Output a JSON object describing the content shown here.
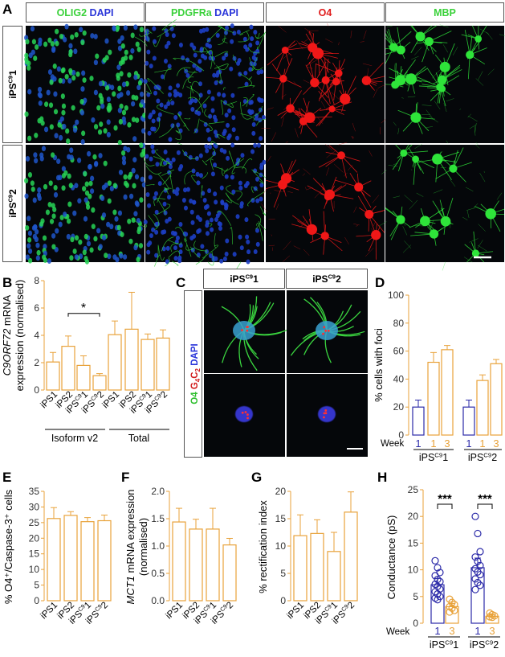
{
  "colors": {
    "bar": "#e8a23a",
    "bar_blue": "#2b2aa8",
    "micrograph_bg": "#05070a",
    "green": "#2ee03a",
    "red": "#e01515",
    "blue": "#2a47e0"
  },
  "panel_A": {
    "letter": "A",
    "columns": [
      {
        "parts": [
          [
            "OLIG2",
            "#3ad13a"
          ],
          [
            " DAPI",
            "#2a35d9"
          ]
        ]
      },
      {
        "parts": [
          [
            "PDGFRa",
            "#3ad13a"
          ],
          [
            " DAPI",
            "#2a35d9"
          ]
        ]
      },
      {
        "parts": [
          [
            "O4",
            "#e01b1b"
          ]
        ]
      },
      {
        "parts": [
          [
            "MBP",
            "#3ad13a"
          ]
        ]
      }
    ],
    "rows": [
      {
        "base": "iPS",
        "sup": "C9",
        "tail": "1"
      },
      {
        "base": "iPS",
        "sup": "C9",
        "tail": "2"
      }
    ]
  },
  "panel_B": {
    "letter": "B",
    "ylabel_italic": "C9ORF72",
    "ylabel_rest": " mRNA",
    "ylabel_line2": "expression (normalised)",
    "significance": "*",
    "groups": [
      "Isoform v2",
      "Total"
    ]
  },
  "panel_C": {
    "letter": "C",
    "columns": [
      {
        "base": "iPS",
        "sup": "C9",
        "tail": "1"
      },
      {
        "base": "iPS",
        "sup": "C9",
        "tail": "2"
      }
    ],
    "side_label": [
      [
        "O4 ",
        "#2fbf2f"
      ],
      [
        "G",
        "#d11b1b"
      ],
      [
        "4",
        "#d11b1b",
        "sub"
      ],
      [
        "C",
        "#d11b1b"
      ],
      [
        "2",
        "#d11b1b",
        "sub"
      ],
      [
        " DAPI",
        "#2a35d9"
      ]
    ]
  },
  "panel_D": {
    "letter": "D",
    "ylabel": "% cells with foci",
    "week_label": "Week",
    "week_numbers": [
      "1",
      "1",
      "3",
      "1",
      "1",
      "3"
    ],
    "lines": [
      {
        "base": "iPS",
        "sup": "C9",
        "tail": "1"
      },
      {
        "base": "iPS",
        "sup": "C9",
        "tail": "2"
      }
    ]
  },
  "panel_E": {
    "letter": "E",
    "ylabel": "% O4⁺/Caspase-3⁺ cells"
  },
  "panel_F": {
    "letter": "F",
    "ylabel_italic": "MCT1",
    "ylabel_rest": " mRNA expression",
    "ylabel_line2": "(normalised)"
  },
  "panel_G": {
    "letter": "G",
    "ylabel": "% rectification index"
  },
  "panel_H": {
    "letter": "H",
    "ylabel": "Conductance (pS)",
    "significance": [
      "***",
      "***"
    ],
    "week_label": "Week",
    "week_numbers": [
      "1",
      "3",
      "1",
      "3"
    ],
    "lines": [
      {
        "base": "iPS",
        "sup": "C9",
        "tail": "1"
      },
      {
        "base": "iPS",
        "sup": "C9",
        "tail": "2"
      }
    ]
  },
  "chart_data": [
    {
      "id": "B",
      "type": "bar",
      "xlabel": "",
      "ylabel": "C9ORF72 mRNA expression (normalised)",
      "ylim": [
        0,
        8
      ],
      "yticks": [
        "0",
        "2",
        "4",
        "6",
        "8"
      ],
      "categories": [
        {
          "base": "iPS1",
          "sup": "",
          "tail": ""
        },
        {
          "base": "iPS2",
          "sup": "",
          "tail": ""
        },
        {
          "base": "iPS",
          "sup": "C9",
          "tail": "1"
        },
        {
          "base": "iPS",
          "sup": "C9",
          "tail": "2"
        },
        {
          "base": "iPS1",
          "sup": "",
          "tail": ""
        },
        {
          "base": "iPS2",
          "sup": "",
          "tail": ""
        },
        {
          "base": "iPS",
          "sup": "C9",
          "tail": "1"
        },
        {
          "base": "iPS",
          "sup": "C9",
          "tail": "2"
        }
      ],
      "values": [
        2.05,
        3.2,
        1.8,
        1.05,
        4.05,
        4.45,
        3.7,
        3.8
      ],
      "errors": [
        0.7,
        0.75,
        0.7,
        0.15,
        1.0,
        2.7,
        0.4,
        0.6
      ]
    },
    {
      "id": "D",
      "type": "bar",
      "xlabel": "",
      "ylabel": "% cells with foci",
      "ylim": [
        0,
        100
      ],
      "yticks": [
        "0",
        "20",
        "40",
        "60",
        "80",
        "100"
      ],
      "values": [
        20,
        52,
        61,
        20,
        39,
        51
      ],
      "errors": [
        5,
        7,
        3,
        5,
        4,
        3
      ],
      "bar_colors": [
        "blue",
        "orange",
        "orange",
        "blue",
        "orange",
        "orange"
      ]
    },
    {
      "id": "E",
      "type": "bar",
      "xlabel": "",
      "ylabel": "% O4+/Caspase-3+ cells",
      "ylim": [
        0,
        35
      ],
      "yticks": [
        "0",
        "5",
        "10",
        "15",
        "20",
        "25",
        "30",
        "35"
      ],
      "categories": [
        {
          "base": "iPS1",
          "sup": "",
          "tail": ""
        },
        {
          "base": "iPS2",
          "sup": "",
          "tail": ""
        },
        {
          "base": "iPS",
          "sup": "C9",
          "tail": "1"
        },
        {
          "base": "iPS",
          "sup": "C9",
          "tail": "2"
        }
      ],
      "values": [
        26.3,
        27.3,
        25.3,
        25.6
      ],
      "errors": [
        3.5,
        1.2,
        1.3,
        1.8
      ]
    },
    {
      "id": "F",
      "type": "bar",
      "xlabel": "",
      "ylabel": "MCT1 mRNA expression (normalised)",
      "ylim": [
        0,
        2.0
      ],
      "yticks": [
        "0.0",
        "0.5",
        "1.0",
        "1.5",
        "2.0"
      ],
      "categories": [
        {
          "base": "iPS1",
          "sup": "",
          "tail": ""
        },
        {
          "base": "iPS2",
          "sup": "",
          "tail": ""
        },
        {
          "base": "iPS",
          "sup": "C9",
          "tail": "1"
        },
        {
          "base": "iPS",
          "sup": "C9",
          "tail": "2"
        }
      ],
      "values": [
        1.44,
        1.31,
        1.31,
        1.02
      ],
      "errors": [
        0.25,
        0.18,
        0.38,
        0.12
      ]
    },
    {
      "id": "G",
      "type": "bar",
      "xlabel": "",
      "ylabel": "% rectification index",
      "ylim": [
        0,
        20
      ],
      "yticks": [
        "0",
        "5",
        "10",
        "15",
        "20"
      ],
      "categories": [
        {
          "base": "iPS1",
          "sup": "",
          "tail": ""
        },
        {
          "base": "iPS2",
          "sup": "",
          "tail": ""
        },
        {
          "base": "iPS",
          "sup": "C9",
          "tail": "1"
        },
        {
          "base": "iPS",
          "sup": "C9",
          "tail": "2"
        }
      ],
      "values": [
        11.9,
        12.3,
        9.0,
        16.2
      ],
      "errors": [
        3.8,
        2.5,
        3.5,
        3.7
      ]
    },
    {
      "id": "H",
      "type": "bar",
      "xlabel": "",
      "ylabel": "Conductance (pS)",
      "ylim": [
        0,
        25
      ],
      "yticks": [
        "0",
        "5",
        "10",
        "15",
        "20",
        "25"
      ],
      "values": [
        7.2,
        3.1,
        10.4,
        1.3
      ],
      "errors": [
        1.2,
        0.6,
        1.8,
        0.3
      ],
      "bar_colors": [
        "blue",
        "orange",
        "blue",
        "orange"
      ],
      "points": [
        [
          11.7,
          10.4,
          9.5,
          8.9,
          8.2,
          7.8,
          7.3,
          6.9,
          6.4,
          5.9,
          5.5,
          5.0,
          4.7,
          4.4
        ],
        [
          4.5,
          3.9,
          3.5,
          3.1,
          2.8,
          2.4,
          2.1
        ],
        [
          20.0,
          16.8,
          13.4,
          12.4,
          11.6,
          10.8,
          10.2,
          9.6,
          9.1,
          8.3,
          7.6,
          7.1,
          6.3
        ],
        [
          1.9,
          1.6,
          1.4,
          1.2,
          1.1
        ]
      ]
    }
  ]
}
